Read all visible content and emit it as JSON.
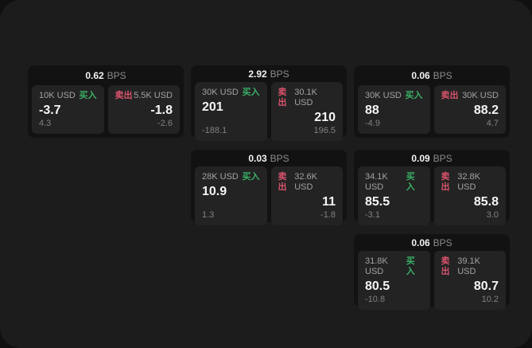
{
  "labels": {
    "buy": "买入",
    "sell": "卖出",
    "bps": "BPS"
  },
  "colors": {
    "panel_bg": "#1c1c1c",
    "card_bg": "#121212",
    "tile_bg": "#232323",
    "buy_green": "#3ab066",
    "sell_red": "#d9536c"
  },
  "cards": [
    {
      "bps": "0.62",
      "buy": {
        "size": "10K USD",
        "price": "-3.7",
        "sub": "4.3"
      },
      "sell": {
        "size": "5.5K USD",
        "price": "-1.8",
        "sub": "-2.6"
      }
    },
    {
      "bps": "2.92",
      "buy": {
        "size": "30K USD",
        "price": "201",
        "sub": "-188.1"
      },
      "sell": {
        "size": "30.1K USD",
        "price": "210",
        "sub": "196.5"
      }
    },
    {
      "bps": "0.06",
      "buy": {
        "size": "30K USD",
        "price": "88",
        "sub": "-4.9"
      },
      "sell": {
        "size": "30K USD",
        "price": "88.2",
        "sub": "4.7"
      }
    },
    {
      "bps": "0.03",
      "buy": {
        "size": "28K USD",
        "price": "10.9",
        "sub": "1.3"
      },
      "sell": {
        "size": "32.6K USD",
        "price": "11",
        "sub": "-1.8"
      }
    },
    {
      "bps": "0.09",
      "buy": {
        "size": "34.1K USD",
        "price": "85.5",
        "sub": "-3.1"
      },
      "sell": {
        "size": "32.8K USD",
        "price": "85.8",
        "sub": "3.0"
      }
    },
    {
      "bps": "0.06",
      "buy": {
        "size": "31.8K USD",
        "price": "80.5",
        "sub": "-10.8"
      },
      "sell": {
        "size": "39.1K USD",
        "price": "80.7",
        "sub": "10.2"
      }
    }
  ]
}
